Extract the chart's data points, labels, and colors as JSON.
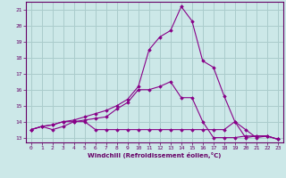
{
  "bg_color": "#cce8e8",
  "grid_color": "#aacccc",
  "line_color": "#880088",
  "xlabel": "Windchill (Refroidissement éolien,°C)",
  "xlim": [
    -0.5,
    23.5
  ],
  "ylim": [
    12.7,
    21.5
  ],
  "yticks": [
    13,
    14,
    15,
    16,
    17,
    18,
    19,
    20,
    21
  ],
  "xticks": [
    0,
    1,
    2,
    3,
    4,
    5,
    6,
    7,
    8,
    9,
    10,
    11,
    12,
    13,
    14,
    15,
    16,
    17,
    18,
    19,
    20,
    21,
    22,
    23
  ],
  "series": [
    [
      13.5,
      13.7,
      13.5,
      13.7,
      14.0,
      14.0,
      13.5,
      13.5,
      13.5,
      13.5,
      13.5,
      13.5,
      13.5,
      13.5,
      13.5,
      13.5,
      13.5,
      13.5,
      13.5,
      14.0,
      13.0,
      13.1,
      13.1,
      12.9
    ],
    [
      13.5,
      13.7,
      13.8,
      14.0,
      14.0,
      14.1,
      14.2,
      14.3,
      14.8,
      15.2,
      16.0,
      16.0,
      16.2,
      16.5,
      15.5,
      15.5,
      14.0,
      13.0,
      13.0,
      13.0,
      13.1,
      13.1,
      13.1,
      12.9
    ],
    [
      13.5,
      13.7,
      13.8,
      14.0,
      14.1,
      14.3,
      14.5,
      14.7,
      15.0,
      15.4,
      16.2,
      18.5,
      19.3,
      19.7,
      21.2,
      20.3,
      17.8,
      17.4,
      15.6,
      14.0,
      13.5,
      13.0,
      13.1,
      12.9
    ]
  ]
}
